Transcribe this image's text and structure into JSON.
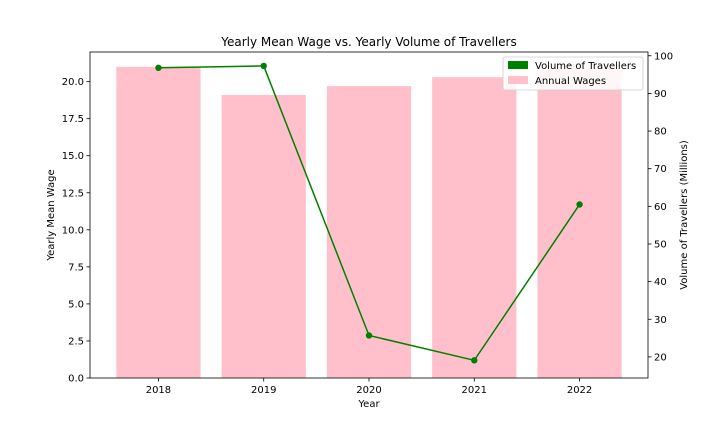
{
  "chart_data": {
    "type": "bar+line",
    "title": "Yearly Mean Wage vs. Yearly Volume of Travellers",
    "xlabel": "Year",
    "ylabel_left": "Yearly Mean Wage",
    "ylabel_right": "Volume  of Travellers (Millions)",
    "categories": [
      "2018",
      "2019",
      "2020",
      "2021",
      "2022"
    ],
    "ylim_left": [
      0,
      22
    ],
    "ylim_right": [
      14.4,
      101.0
    ],
    "yticks_left": [
      "0.0",
      "2.5",
      "5.0",
      "7.5",
      "10.0",
      "12.5",
      "15.0",
      "17.5",
      "20.0"
    ],
    "yticks_right": [
      "20",
      "30",
      "40",
      "50",
      "60",
      "70",
      "80",
      "90",
      "100"
    ],
    "series": [
      {
        "name": "Annual Wages",
        "type": "bar",
        "axis": "left",
        "color": "#ffc0cb",
        "values": [
          21.0,
          19.1,
          19.7,
          20.3,
          20.9
        ]
      },
      {
        "name": "Volume of Travellers",
        "type": "line",
        "axis": "right",
        "color": "#008000",
        "marker": "circle",
        "values": [
          96.8,
          97.3,
          25.7,
          19.1,
          60.5
        ]
      }
    ],
    "legend": {
      "position": "top-right",
      "entries": [
        "Volume of Travellers",
        "Annual Wages"
      ]
    },
    "grid": false
  }
}
